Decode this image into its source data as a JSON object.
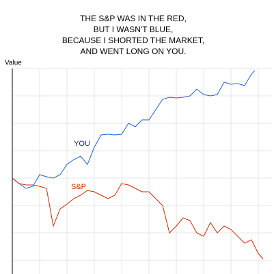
{
  "chart_data": {
    "type": "line",
    "title": [
      "THE S&P WAS IN THE RED,",
      "BUT I WASN'T BLUE,",
      "BECAUSE I SHORTED THE MARKET,",
      "AND WENT LONG ON YOU."
    ],
    "y_label": "Value",
    "xlim": [
      0,
      38
    ],
    "xticks": [
      4,
      8,
      12,
      16,
      20,
      24,
      28,
      32,
      36
    ],
    "ylim": [
      0,
      30
    ],
    "yticks": [
      2,
      6,
      10,
      14,
      18,
      22,
      26,
      30
    ],
    "grid": true,
    "series": [
      {
        "name": "YOU",
        "color": "#1f5fd6",
        "x": [
          0,
          1,
          2,
          3,
          4,
          5,
          6,
          7,
          8,
          9,
          10,
          11,
          12,
          13,
          14,
          15,
          16,
          17,
          18,
          19,
          20,
          21,
          22,
          23,
          24,
          25,
          26,
          27,
          28,
          29,
          30,
          31,
          32,
          33,
          34,
          35,
          35.5
        ],
        "values": [
          14,
          13.2,
          12.5,
          12.8,
          14.5,
          14.2,
          14,
          14.5,
          16,
          16.7,
          17.2,
          16,
          18.5,
          20.3,
          20.4,
          20.3,
          20.4,
          22,
          21.5,
          22.5,
          22.5,
          24,
          25.5,
          25.8,
          25.7,
          25.8,
          26,
          27,
          26.2,
          26,
          26.2,
          28,
          27.7,
          27.8,
          27.5,
          29.2,
          29.7
        ]
      },
      {
        "name": "S&P",
        "color": "#cc2a00",
        "x": [
          0,
          1,
          2,
          3,
          4,
          5,
          6,
          7,
          8,
          9,
          10,
          11,
          12,
          13,
          14,
          15,
          16,
          17,
          18,
          19,
          20,
          21,
          22,
          23,
          24,
          25,
          26,
          27,
          28,
          29,
          30,
          31,
          32,
          33,
          34,
          35,
          36,
          36.7
        ],
        "values": [
          14,
          13.2,
          13,
          13,
          12.8,
          12.5,
          7,
          9.5,
          10.2,
          11,
          11.5,
          12.2,
          12,
          11.5,
          11,
          11.5,
          13.2,
          13,
          12.5,
          12,
          12,
          11,
          10,
          6,
          7,
          8.2,
          7.8,
          6,
          5.5,
          7.5,
          6,
          7,
          6.5,
          5.5,
          4.5,
          5,
          3,
          2.2
        ]
      }
    ]
  }
}
